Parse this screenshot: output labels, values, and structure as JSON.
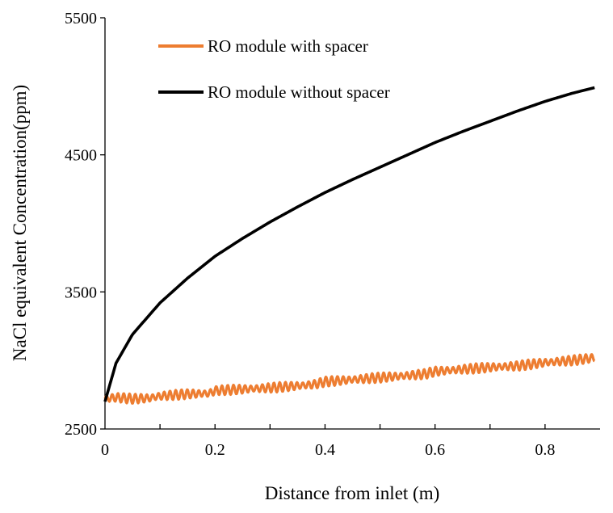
{
  "chart_data": {
    "type": "line",
    "title": "",
    "xlabel": "Distance from inlet (m)",
    "ylabel": "NaCl equivalent Concentration(ppm)",
    "xlim": [
      0,
      0.9
    ],
    "ylim": [
      2500,
      5500
    ],
    "x_ticks": [
      0,
      0.2,
      0.4,
      0.6,
      0.8
    ],
    "x_tick_labels": [
      "0",
      "0.2",
      "0.4",
      "0.6",
      "0.8"
    ],
    "x_minor_step": 0.1,
    "y_ticks": [
      2500,
      3500,
      4500,
      5500
    ],
    "y_tick_labels": [
      "2500",
      "3500",
      "4500",
      "5500"
    ],
    "grid": false,
    "legend_position": "top-left",
    "series": [
      {
        "name": "RO module with spacer",
        "color": "#ED7D31",
        "x": [
          0,
          0.02,
          0.05,
          0.08,
          0.1,
          0.15,
          0.19,
          0.2,
          0.25,
          0.3,
          0.35,
          0.38,
          0.4,
          0.45,
          0.5,
          0.55,
          0.58,
          0.6,
          0.65,
          0.7,
          0.75,
          0.77,
          0.8,
          0.85,
          0.89
        ],
        "values": [
          2720,
          2730,
          2720,
          2725,
          2740,
          2755,
          2760,
          2780,
          2790,
          2800,
          2815,
          2825,
          2845,
          2860,
          2875,
          2890,
          2900,
          2920,
          2935,
          2950,
          2960,
          2970,
          2985,
          3000,
          3020
        ],
        "oscillation_amplitude": 35
      },
      {
        "name": "RO module without spacer",
        "color": "#000000",
        "x": [
          0,
          0.02,
          0.05,
          0.1,
          0.15,
          0.2,
          0.25,
          0.3,
          0.35,
          0.4,
          0.45,
          0.5,
          0.55,
          0.6,
          0.65,
          0.7,
          0.75,
          0.8,
          0.85,
          0.89
        ],
        "values": [
          2700,
          2980,
          3190,
          3420,
          3600,
          3760,
          3890,
          4010,
          4120,
          4225,
          4320,
          4410,
          4500,
          4590,
          4670,
          4745,
          4820,
          4890,
          4950,
          4990
        ]
      }
    ]
  }
}
